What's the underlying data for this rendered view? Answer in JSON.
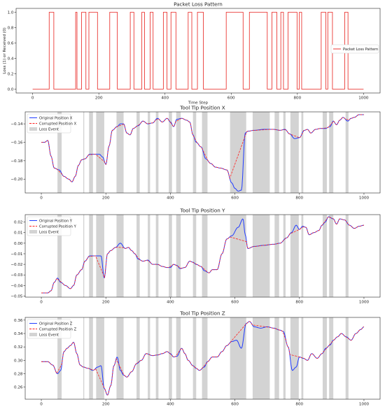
{
  "colors": {
    "loss_line": "#e8211d",
    "original": "#1f3bff",
    "corrupted": "#ff1f1f",
    "loss_event": "#d3d3d3",
    "axes": "#222222"
  },
  "chart_data": [
    {
      "type": "line",
      "title": "Packet Loss Pattern",
      "xlabel": "Time Step",
      "ylabel": "Loss (1) or Received (0)",
      "xlim": [
        -50,
        1050
      ],
      "ylim": [
        -0.05,
        1.05
      ],
      "xticks": [
        0,
        200,
        400,
        600,
        800,
        1000
      ],
      "yticks": [
        0.0,
        0.2,
        0.4,
        0.6,
        0.8,
        1.0
      ],
      "ytick_labels": [
        "0.0",
        "0.2",
        "0.4",
        "0.6",
        "0.8",
        "1.0"
      ],
      "legend_position": "center-right",
      "legend": [
        "Packet Loss Pattern"
      ],
      "loss_intervals": [
        [
          50,
          63
        ],
        [
          130,
          133
        ],
        [
          148,
          160
        ],
        [
          170,
          195
        ],
        [
          233,
          255
        ],
        [
          295,
          305
        ],
        [
          330,
          337
        ],
        [
          355,
          363
        ],
        [
          395,
          405
        ],
        [
          418,
          432
        ],
        [
          470,
          480
        ],
        [
          498,
          515
        ],
        [
          585,
          635
        ],
        [
          655,
          708
        ],
        [
          723,
          737
        ],
        [
          750,
          757
        ],
        [
          772,
          798
        ],
        [
          806,
          812
        ],
        [
          872,
          885
        ],
        [
          892,
          905
        ],
        [
          943,
          952
        ]
      ],
      "x_max": 1000
    },
    {
      "type": "line",
      "title": "Tool Tip Position X",
      "xlim": [
        -50,
        1050
      ],
      "ylim": [
        -0.215,
        -0.127
      ],
      "xticks": [
        0,
        200,
        400,
        600,
        800,
        1000
      ],
      "yticks": [
        -0.2,
        -0.18,
        -0.16,
        -0.14
      ],
      "ytick_labels": [
        "−0.20",
        "−0.18",
        "−0.16",
        "−0.14"
      ],
      "legend_position": "upper-left",
      "legend": [
        "Original Position X",
        "Corrupted Position X",
        "Loss Event"
      ],
      "keypoints": [
        [
          0,
          -0.16
        ],
        [
          10,
          -0.16
        ],
        [
          20,
          -0.158
        ],
        [
          30,
          -0.175
        ],
        [
          40,
          -0.188
        ],
        [
          55,
          -0.19
        ],
        [
          70,
          -0.197
        ],
        [
          85,
          -0.2
        ],
        [
          95,
          -0.203
        ],
        [
          105,
          -0.197
        ],
        [
          115,
          -0.185
        ],
        [
          125,
          -0.179
        ],
        [
          135,
          -0.178
        ],
        [
          150,
          -0.173
        ],
        [
          165,
          -0.173
        ],
        [
          180,
          -0.173
        ],
        [
          190,
          -0.176
        ],
        [
          200,
          -0.184
        ],
        [
          210,
          -0.164
        ],
        [
          220,
          -0.147
        ],
        [
          235,
          -0.143
        ],
        [
          245,
          -0.14
        ],
        [
          255,
          -0.14
        ],
        [
          265,
          -0.15
        ],
        [
          275,
          -0.152
        ],
        [
          285,
          -0.145
        ],
        [
          300,
          -0.142
        ],
        [
          315,
          -0.137
        ],
        [
          330,
          -0.14
        ],
        [
          345,
          -0.139
        ],
        [
          360,
          -0.134
        ],
        [
          375,
          -0.138
        ],
        [
          390,
          -0.134
        ],
        [
          400,
          -0.138
        ],
        [
          410,
          -0.143
        ],
        [
          420,
          -0.135
        ],
        [
          435,
          -0.134
        ],
        [
          450,
          -0.136
        ],
        [
          460,
          -0.138
        ],
        [
          470,
          -0.152
        ],
        [
          480,
          -0.16
        ],
        [
          495,
          -0.165
        ],
        [
          510,
          -0.178
        ],
        [
          525,
          -0.183
        ],
        [
          540,
          -0.187
        ],
        [
          555,
          -0.188
        ],
        [
          575,
          -0.19
        ],
        [
          590,
          -0.204
        ],
        [
          600,
          -0.21
        ],
        [
          610,
          -0.213
        ],
        [
          620,
          -0.212
        ],
        [
          632,
          -0.15
        ],
        [
          640,
          -0.148
        ],
        [
          660,
          -0.147
        ],
        [
          690,
          -0.146
        ],
        [
          720,
          -0.146
        ],
        [
          740,
          -0.147
        ],
        [
          755,
          -0.146
        ],
        [
          770,
          -0.151
        ],
        [
          785,
          -0.156
        ],
        [
          800,
          -0.155
        ],
        [
          815,
          -0.147
        ],
        [
          825,
          -0.146
        ],
        [
          835,
          -0.15
        ],
        [
          850,
          -0.146
        ],
        [
          865,
          -0.145
        ],
        [
          880,
          -0.145
        ],
        [
          895,
          -0.143
        ],
        [
          905,
          -0.137
        ],
        [
          915,
          -0.141
        ],
        [
          925,
          -0.136
        ],
        [
          935,
          -0.133
        ],
        [
          950,
          -0.137
        ],
        [
          960,
          -0.134
        ],
        [
          970,
          -0.133
        ],
        [
          985,
          -0.13
        ],
        [
          1000,
          -0.13
        ]
      ]
    },
    {
      "type": "line",
      "title": "Tool Tip Position Y",
      "xlim": [
        -50,
        1050
      ],
      "ylim": [
        -0.051,
        0.027
      ],
      "xticks": [
        0,
        200,
        400,
        600,
        800,
        1000
      ],
      "yticks": [
        -0.05,
        -0.04,
        -0.03,
        -0.02,
        -0.01,
        0.0,
        0.01,
        0.02
      ],
      "ytick_labels": [
        "−0.05",
        "−0.04",
        "−0.03",
        "−0.02",
        "−0.01",
        "0.00",
        "0.01",
        "0.02"
      ],
      "legend_position": "upper-left",
      "legend": [
        "Original Position Y",
        "Corrupted Position Y",
        "Loss Event"
      ],
      "keypoints": [
        [
          0,
          -0.047
        ],
        [
          20,
          -0.047
        ],
        [
          30,
          -0.045
        ],
        [
          40,
          -0.037
        ],
        [
          50,
          -0.033
        ],
        [
          60,
          -0.037
        ],
        [
          75,
          -0.04
        ],
        [
          90,
          -0.043
        ],
        [
          100,
          -0.04
        ],
        [
          110,
          -0.03
        ],
        [
          125,
          -0.025
        ],
        [
          135,
          -0.017
        ],
        [
          150,
          -0.012
        ],
        [
          170,
          -0.012
        ],
        [
          185,
          -0.012
        ],
        [
          195,
          -0.033
        ],
        [
          205,
          -0.01
        ],
        [
          215,
          -0.007
        ],
        [
          230,
          -0.004
        ],
        [
          245,
          0.0
        ],
        [
          260,
          -0.005
        ],
        [
          270,
          -0.004
        ],
        [
          280,
          -0.007
        ],
        [
          290,
          -0.01
        ],
        [
          300,
          -0.015
        ],
        [
          315,
          -0.017
        ],
        [
          330,
          -0.016
        ],
        [
          345,
          -0.02
        ],
        [
          360,
          -0.02
        ],
        [
          375,
          -0.022
        ],
        [
          390,
          -0.023
        ],
        [
          400,
          -0.023
        ],
        [
          410,
          -0.02
        ],
        [
          420,
          -0.021
        ],
        [
          430,
          -0.024
        ],
        [
          445,
          -0.023
        ],
        [
          460,
          -0.017
        ],
        [
          470,
          -0.018
        ],
        [
          480,
          -0.02
        ],
        [
          495,
          -0.022
        ],
        [
          505,
          -0.026
        ],
        [
          520,
          -0.028
        ],
        [
          530,
          -0.025
        ],
        [
          545,
          -0.025
        ],
        [
          560,
          -0.01
        ],
        [
          575,
          0.004
        ],
        [
          590,
          0.007
        ],
        [
          610,
          0.015
        ],
        [
          625,
          0.023
        ],
        [
          632,
          0.008
        ],
        [
          640,
          -0.005
        ],
        [
          660,
          -0.003
        ],
        [
          690,
          -0.002
        ],
        [
          720,
          -0.001
        ],
        [
          740,
          0.0
        ],
        [
          760,
          0.005
        ],
        [
          775,
          0.01
        ],
        [
          790,
          0.017
        ],
        [
          800,
          0.013
        ],
        [
          810,
          0.016
        ],
        [
          820,
          0.015
        ],
        [
          830,
          0.008
        ],
        [
          845,
          0.01
        ],
        [
          860,
          0.012
        ],
        [
          870,
          0.017
        ],
        [
          880,
          0.02
        ],
        [
          890,
          0.025
        ],
        [
          905,
          0.023
        ],
        [
          915,
          0.018
        ],
        [
          925,
          0.023
        ],
        [
          940,
          0.022
        ],
        [
          955,
          0.017
        ],
        [
          970,
          0.014
        ],
        [
          985,
          0.016
        ],
        [
          1000,
          0.017
        ]
      ]
    },
    {
      "type": "line",
      "title": "Tool Tip Position Z",
      "xlim": [
        -50,
        1050
      ],
      "ylim": [
        0.242,
        0.364
      ],
      "xticks": [
        0,
        200,
        400,
        600,
        800,
        1000
      ],
      "yticks": [
        0.26,
        0.28,
        0.3,
        0.32,
        0.34,
        0.36
      ],
      "ytick_labels": [
        "0.26",
        "0.28",
        "0.30",
        "0.32",
        "0.34",
        "0.36"
      ],
      "legend_position": "upper-left",
      "legend": [
        "Original Position Z",
        "Corrupted Position Z",
        "Loss Event"
      ],
      "keypoints": [
        [
          0,
          0.298
        ],
        [
          20,
          0.298
        ],
        [
          35,
          0.293
        ],
        [
          50,
          0.28
        ],
        [
          60,
          0.285
        ],
        [
          70,
          0.313
        ],
        [
          80,
          0.318
        ],
        [
          90,
          0.322
        ],
        [
          100,
          0.327
        ],
        [
          110,
          0.31
        ],
        [
          120,
          0.293
        ],
        [
          130,
          0.29
        ],
        [
          145,
          0.288
        ],
        [
          160,
          0.285
        ],
        [
          175,
          0.29
        ],
        [
          185,
          0.292
        ],
        [
          195,
          0.258
        ],
        [
          205,
          0.248
        ],
        [
          215,
          0.262
        ],
        [
          225,
          0.292
        ],
        [
          235,
          0.305
        ],
        [
          245,
          0.285
        ],
        [
          255,
          0.278
        ],
        [
          265,
          0.275
        ],
        [
          280,
          0.283
        ],
        [
          295,
          0.295
        ],
        [
          310,
          0.3
        ],
        [
          325,
          0.31
        ],
        [
          345,
          0.307
        ],
        [
          360,
          0.308
        ],
        [
          375,
          0.31
        ],
        [
          390,
          0.313
        ],
        [
          400,
          0.31
        ],
        [
          410,
          0.305
        ],
        [
          420,
          0.306
        ],
        [
          435,
          0.318
        ],
        [
          445,
          0.31
        ],
        [
          455,
          0.3
        ],
        [
          470,
          0.292
        ],
        [
          480,
          0.288
        ],
        [
          490,
          0.285
        ],
        [
          505,
          0.29
        ],
        [
          515,
          0.298
        ],
        [
          530,
          0.305
        ],
        [
          545,
          0.305
        ],
        [
          560,
          0.313
        ],
        [
          575,
          0.322
        ],
        [
          590,
          0.328
        ],
        [
          605,
          0.33
        ],
        [
          620,
          0.318
        ],
        [
          635,
          0.355
        ],
        [
          645,
          0.358
        ],
        [
          660,
          0.35
        ],
        [
          680,
          0.348
        ],
        [
          700,
          0.35
        ],
        [
          720,
          0.348
        ],
        [
          740,
          0.345
        ],
        [
          750,
          0.343
        ],
        [
          765,
          0.32
        ],
        [
          778,
          0.285
        ],
        [
          790,
          0.29
        ],
        [
          800,
          0.305
        ],
        [
          812,
          0.303
        ],
        [
          825,
          0.3
        ],
        [
          838,
          0.31
        ],
        [
          855,
          0.303
        ],
        [
          870,
          0.31
        ],
        [
          882,
          0.318
        ],
        [
          895,
          0.323
        ],
        [
          905,
          0.33
        ],
        [
          918,
          0.335
        ],
        [
          930,
          0.34
        ],
        [
          945,
          0.335
        ],
        [
          960,
          0.33
        ],
        [
          975,
          0.34
        ],
        [
          990,
          0.346
        ],
        [
          1000,
          0.35
        ]
      ]
    }
  ]
}
